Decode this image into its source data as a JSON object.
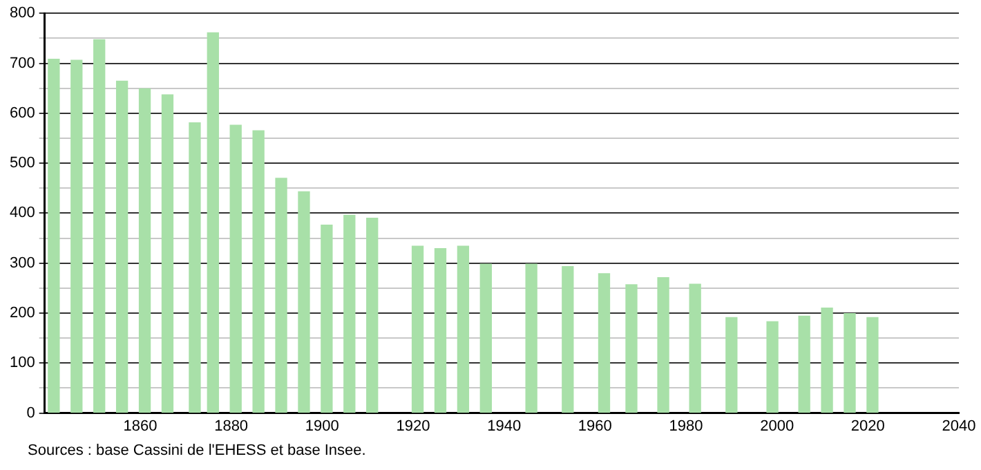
{
  "chart_data": {
    "type": "bar",
    "x": [
      1841,
      1846,
      1851,
      1856,
      1861,
      1866,
      1872,
      1876,
      1881,
      1886,
      1891,
      1896,
      1901,
      1906,
      1911,
      1921,
      1926,
      1931,
      1936,
      1946,
      1954,
      1962,
      1968,
      1975,
      1982,
      1990,
      1999,
      2006,
      2011,
      2016,
      2021
    ],
    "values": [
      708,
      706,
      747,
      664,
      649,
      637,
      581,
      761,
      576,
      565,
      470,
      443,
      376,
      396,
      390,
      334,
      329,
      334,
      298,
      298,
      293,
      279,
      257,
      271,
      258,
      191,
      183,
      194,
      210,
      199,
      191
    ],
    "color": "#a8e0a8",
    "xlim": [
      1839,
      2040
    ],
    "xticks": [
      1860,
      1880,
      1900,
      1920,
      1940,
      1960,
      1980,
      2000,
      2020,
      2040
    ],
    "ylim": [
      0,
      800
    ],
    "yticks": [
      0,
      {
        "value": 50,
        "label": null
      },
      100,
      {
        "value": 150,
        "label": null
      },
      200,
      {
        "value": 250,
        "label": null
      },
      300,
      {
        "value": 350,
        "label": null
      },
      400,
      {
        "value": 450,
        "label": null
      },
      500,
      {
        "value": 550,
        "label": null
      },
      600,
      {
        "value": 650,
        "label": null
      },
      700,
      {
        "value": 750,
        "label": null
      },
      800
    ],
    "grid": "y",
    "annotations": [
      "Sources : base Cassini de l'EHESS et base Insee."
    ]
  }
}
